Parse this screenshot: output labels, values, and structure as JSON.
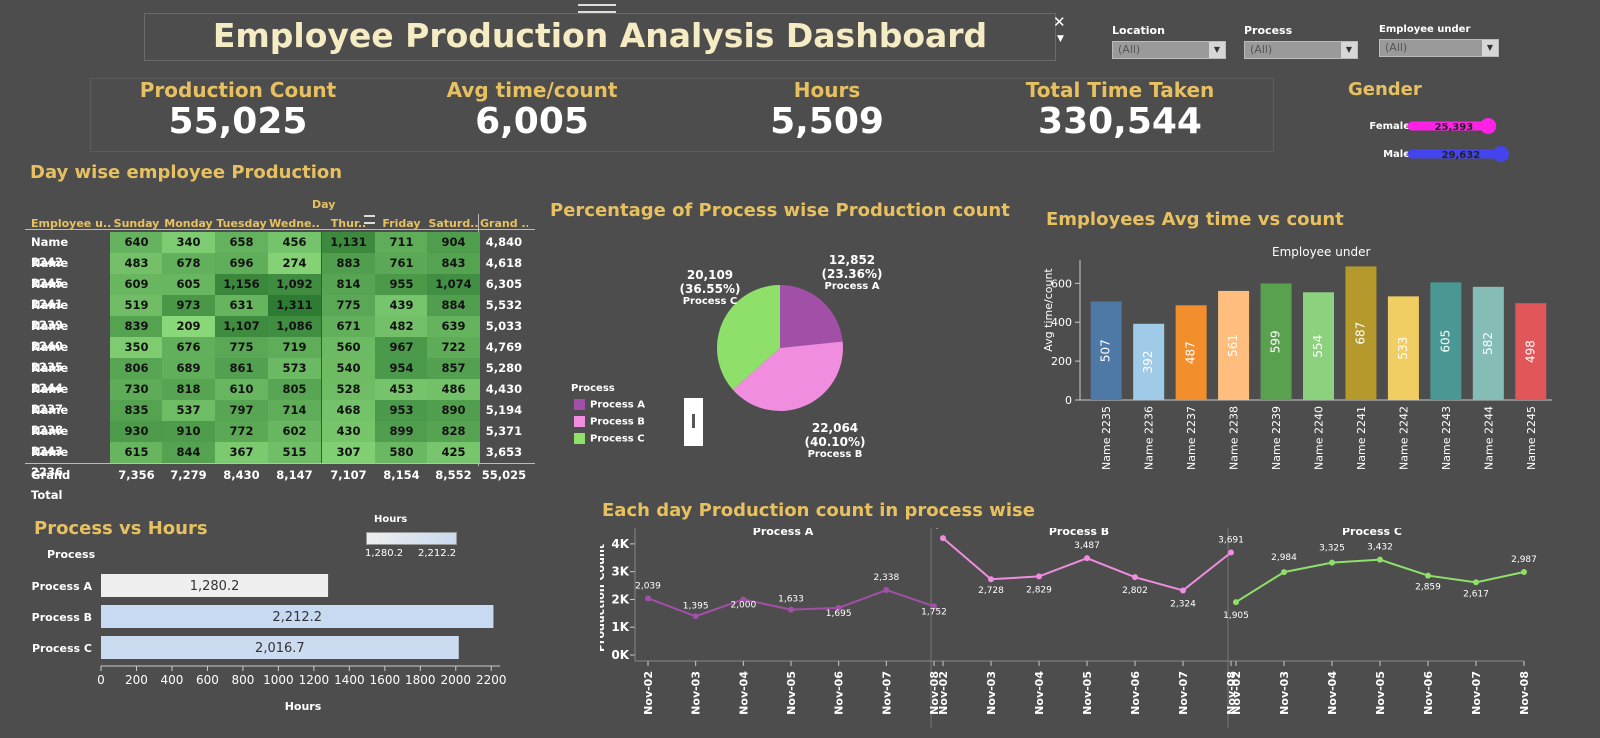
{
  "header": {
    "title": "Employee Production Analysis Dashboard"
  },
  "filters": [
    {
      "label": "Location",
      "value": "(All)"
    },
    {
      "label": "Process",
      "value": "(All)"
    },
    {
      "label": "Employee under",
      "value": "(All)"
    }
  ],
  "kpis": [
    {
      "label": "Production Count",
      "value": "55,025"
    },
    {
      "label": "Avg time/count",
      "value": "6,005"
    },
    {
      "label": "Hours",
      "value": "5,509"
    },
    {
      "label": "Total Time Taken",
      "value": "330,544"
    }
  ],
  "colors": {
    "female": "#ff22e6",
    "male": "#4444ee",
    "processA": "#a24fa7",
    "processB": "#f08ddf",
    "processC": "#8fe06a",
    "gold": "#e7c161"
  },
  "gender": {
    "title": "Gender",
    "items": [
      {
        "label": "Female",
        "value": 25393,
        "display": "25,393"
      },
      {
        "label": "Male",
        "value": 29632,
        "display": "29,632"
      }
    ]
  },
  "heat": {
    "title": "Day wise employee Production",
    "col_header": "Day",
    "row_header": "Employee u..",
    "columns": [
      "Sunday",
      "Monday",
      "Tuesday",
      "Wedne..",
      "Thur..",
      "Friday",
      "Saturd..",
      "Grand .."
    ],
    "rows": [
      {
        "name": "Name 2242",
        "values": [
          640,
          340,
          658,
          456,
          1131,
          711,
          904
        ],
        "total": "4,840"
      },
      {
        "name": "Name 2245",
        "values": [
          483,
          678,
          696,
          274,
          883,
          761,
          843
        ],
        "total": "4,618"
      },
      {
        "name": "Name 2241",
        "values": [
          609,
          605,
          1156,
          1092,
          814,
          955,
          1074
        ],
        "total": "6,305"
      },
      {
        "name": "Name 2239",
        "values": [
          519,
          973,
          631,
          1311,
          775,
          439,
          884
        ],
        "total": "5,532"
      },
      {
        "name": "Name 2240",
        "values": [
          839,
          209,
          1107,
          1086,
          671,
          482,
          639
        ],
        "total": "5,033"
      },
      {
        "name": "Name 2235",
        "values": [
          350,
          676,
          775,
          719,
          560,
          967,
          722
        ],
        "total": "4,769"
      },
      {
        "name": "Name 2244",
        "values": [
          806,
          689,
          861,
          573,
          540,
          954,
          857
        ],
        "total": "5,280"
      },
      {
        "name": "Name 2237",
        "values": [
          730,
          818,
          610,
          805,
          528,
          453,
          486
        ],
        "total": "4,430"
      },
      {
        "name": "Name 2238",
        "values": [
          835,
          537,
          797,
          714,
          468,
          953,
          890
        ],
        "total": "5,194"
      },
      {
        "name": "Name 2243",
        "values": [
          930,
          910,
          772,
          602,
          430,
          899,
          828
        ],
        "total": "5,371"
      },
      {
        "name": "Name 2236",
        "values": [
          615,
          844,
          367,
          515,
          307,
          580,
          425
        ],
        "total": "3,653"
      }
    ],
    "grand_total": {
      "label": "Grand Total",
      "values": [
        "7,356",
        "7,279",
        "8,430",
        "8,147",
        "7,107",
        "8,154",
        "8,552"
      ],
      "total": "55,025"
    }
  },
  "pie": {
    "title": "Percentage of Process wise Production count",
    "legend_title": "Process",
    "slices": [
      {
        "name": "Process A",
        "value": 12852,
        "label": "12,852",
        "pct": "(23.36%)"
      },
      {
        "name": "Process B",
        "value": 22064,
        "label": "22,064",
        "pct": "(40.10%)"
      },
      {
        "name": "Process C",
        "value": 20109,
        "label": "20,109",
        "pct": "(36.55%)"
      }
    ]
  },
  "chart_data": [
    {
      "type": "table",
      "title": "Day wise employee Production",
      "columns": [
        "Sunday",
        "Monday",
        "Tuesday",
        "Wedne..",
        "Thur..",
        "Friday",
        "Saturd..",
        "Grand .."
      ],
      "rows": [
        "Name 2242",
        "Name 2245",
        "Name 2241",
        "Name 2239",
        "Name 2240",
        "Name 2235",
        "Name 2244",
        "Name 2237",
        "Name 2238",
        "Name 2243",
        "Name 2236",
        "Grand Total"
      ]
    },
    {
      "type": "pie",
      "title": "Percentage of Process wise Production count",
      "categories": [
        "Process A",
        "Process B",
        "Process C"
      ],
      "values": [
        12852,
        22064,
        20109
      ]
    },
    {
      "type": "bar",
      "title": "Employees Avg time vs count",
      "subtitle": "Employee under",
      "ylabel": "Avg time/count",
      "categories": [
        "Name 2235",
        "Name 2236",
        "Name 2237",
        "Name 2238",
        "Name 2239",
        "Name 2240",
        "Name 2241",
        "Name 2242",
        "Name 2243",
        "Name 2244",
        "Name 2245"
      ],
      "values": [
        507,
        392,
        487,
        561,
        599,
        554,
        687,
        533,
        605,
        582,
        498
      ],
      "colors": [
        "#4e79a7",
        "#a0cbe8",
        "#f28e2b",
        "#ffbe7d",
        "#59a14f",
        "#8cd17d",
        "#b6992d",
        "#f1ce63",
        "#499894",
        "#86bcb6",
        "#e15759"
      ],
      "yticks": [
        0,
        200,
        400,
        600
      ],
      "ylim": [
        0,
        720
      ]
    },
    {
      "type": "bar",
      "orientation": "horizontal",
      "title": "Process vs Hours",
      "ylabel": "Process",
      "xlabel": "Hours",
      "legend_title": "Hours",
      "legend_range": [
        "1,280.2",
        "2,212.2"
      ],
      "categories": [
        "Process A",
        "Process B",
        "Process C"
      ],
      "values": [
        1280.2,
        2212.2,
        2016.7
      ],
      "labels": [
        "1,280.2",
        "2,212.2",
        "2,016.7"
      ],
      "xticks": [
        0,
        200,
        400,
        600,
        800,
        1000,
        1200,
        1400,
        1600,
        1800,
        2000,
        2200
      ],
      "xlim": [
        0,
        2300
      ]
    },
    {
      "type": "line",
      "title": "Each day Production count in process wise",
      "ylabel": "Production Count",
      "yticks": [
        "4K",
        "3K",
        "2K",
        "1K",
        "0K"
      ],
      "ylim": [
        0,
        4500
      ],
      "x": [
        "Nov-02",
        "Nov-03",
        "Nov-04",
        "Nov-05",
        "Nov-06",
        "Nov-07",
        "Nov-08"
      ],
      "series": [
        {
          "name": "Process A",
          "values": [
            2039,
            1395,
            2000,
            1633,
            1695,
            2338,
            1752
          ],
          "labels": [
            "2,039",
            "1,395",
            "2,000",
            "1,633",
            "1,695",
            "2,338",
            "1,752"
          ]
        },
        {
          "name": "Process B",
          "values": [
            4209,
            2728,
            2829,
            3487,
            2802,
            2324,
            3691
          ],
          "labels": [
            "4,209",
            "2,728",
            "2,829",
            "3,487",
            "2,802",
            "2,324",
            "3,691"
          ]
        },
        {
          "name": "Process C",
          "values": [
            1905,
            2984,
            3325,
            3432,
            2859,
            2617,
            2987
          ],
          "labels": [
            "1,905",
            "2,984",
            "3,325",
            "3,432",
            "2,859",
            "2,617",
            "2,987"
          ]
        }
      ]
    }
  ]
}
